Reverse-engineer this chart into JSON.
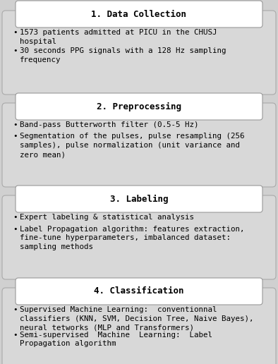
{
  "fig_bg": "#d0d0d0",
  "section_bg": "#d0d0d0",
  "header_bg": "#ffffff",
  "header_border": "#999999",
  "section_border": "#aaaaaa",
  "text_color": "#000000",
  "font_family": "monospace",
  "title_fontsize": 9,
  "bullet_fontsize": 7.8,
  "sections": [
    {
      "title": "1. Data Collection",
      "bullets": [
        "1573 patients admitted at PICU in the CHUSJ\nhospital",
        "30 seconds PPG signals with a 128 Hz sampling\nfrequency"
      ]
    },
    {
      "title": "2. Preprocessing",
      "bullets": [
        "Band-pass Butterworth filter (0.5-5 Hz)",
        "Segmentation of the pulses, pulse resampling (256\nsamples), pulse normalization (unit variance and\nzero mean)"
      ]
    },
    {
      "title": "3. Labeling",
      "bullets": [
        "Expert labeling & statistical analysis",
        "Label Propagation algorithm: features extraction,\nfine-tune hyperparameters, imbalanced dataset:\nsampling methods"
      ]
    },
    {
      "title": "4. Classification",
      "bullets": [
        "Supervised Machine Learning:  conventionnal\nclassifiers (KNN, SVM, Decision Tree, Naive Bayes),\nneural tetworks (MLP and Transformers)",
        "Semi-supervised  Machine  Learning:  Label\nPropagation algorithm"
      ]
    }
  ]
}
